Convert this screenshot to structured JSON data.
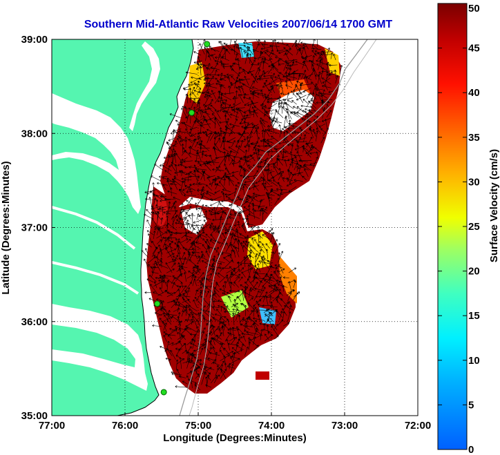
{
  "title": "Southern Mid-Atlantic Raw Velocities 2007/06/14 1700 GMT",
  "x_axis": {
    "label": "Longitude (Degrees:Minutes)",
    "range": [
      -77,
      -72
    ],
    "ticks": [
      {
        "value": -77,
        "label": "77:00"
      },
      {
        "value": -76,
        "label": "76:00"
      },
      {
        "value": -75,
        "label": "75:00"
      },
      {
        "value": -74,
        "label": "74:00"
      },
      {
        "value": -73,
        "label": "73:00"
      },
      {
        "value": -72,
        "label": "72:00"
      }
    ]
  },
  "y_axis": {
    "label": "Latitude (Degrees:Minutes)",
    "range": [
      35,
      39
    ],
    "ticks": [
      {
        "value": 35,
        "label": "35:00"
      },
      {
        "value": 36,
        "label": "36:00"
      },
      {
        "value": 37,
        "label": "37:00"
      },
      {
        "value": 38,
        "label": "38:00"
      },
      {
        "value": 39,
        "label": "39:00"
      }
    ]
  },
  "colorbar": {
    "label": "Surface Velocity (cm/s)",
    "range": [
      0,
      50
    ],
    "ticks": [
      {
        "value": 0,
        "label": "0"
      },
      {
        "value": 5,
        "label": "5"
      },
      {
        "value": 10,
        "label": "10"
      },
      {
        "value": 15,
        "label": "15"
      },
      {
        "value": 20,
        "label": "20"
      },
      {
        "value": 25,
        "label": "25"
      },
      {
        "value": 30,
        "label": "30"
      },
      {
        "value": 35,
        "label": "35"
      },
      {
        "value": 40,
        "label": "40"
      },
      {
        "value": 45,
        "label": "45"
      },
      {
        "value": 50,
        "label": "50"
      }
    ],
    "colormap": "jet"
  },
  "colors": {
    "land": "#55f5b0",
    "water": "#ffffff",
    "grid": "#000000",
    "title": "#0000cc",
    "radar_site": "#22dd22"
  },
  "radar_sites": [
    {
      "lon": -74.88,
      "lat": 38.95
    },
    {
      "lon": -75.09,
      "lat": 38.22
    },
    {
      "lon": -75.56,
      "lat": 36.19
    },
    {
      "lon": -75.47,
      "lat": 35.25
    }
  ]
}
